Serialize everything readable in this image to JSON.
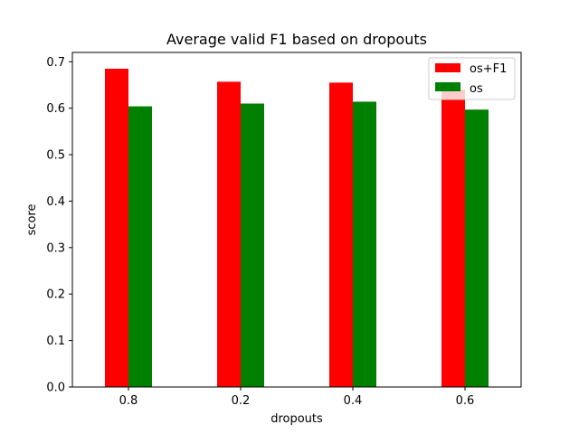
{
  "chart_data": {
    "type": "bar",
    "title": "Average valid F1 based on dropouts",
    "xlabel": "dropouts",
    "ylabel": "score",
    "categories": [
      "0.8",
      "0.2",
      "0.4",
      "0.6"
    ],
    "series": [
      {
        "name": "os+F1",
        "color": "#ff0000",
        "values": [
          0.685,
          0.657,
          0.655,
          0.64
        ]
      },
      {
        "name": "os",
        "color": "#008000",
        "values": [
          0.604,
          0.61,
          0.614,
          0.597
        ]
      }
    ],
    "ylim": [
      0,
      0.72
    ],
    "yticks": [
      "0.0",
      "0.1",
      "0.2",
      "0.3",
      "0.4",
      "0.5",
      "0.6",
      "0.7"
    ],
    "grid": false,
    "legend_position": "top-right"
  }
}
